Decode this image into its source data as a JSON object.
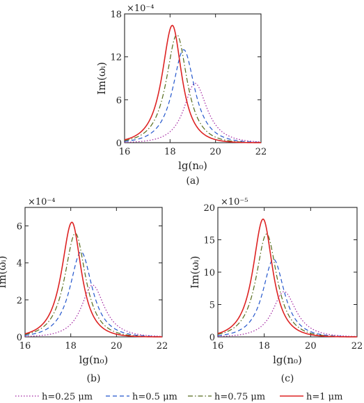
{
  "chart_data": [
    {
      "type": "line",
      "caption": "(a)",
      "xlabel": "lg(n₀)",
      "ylabel": "Im(ωᵢ)",
      "scale_label": "×10⁻⁴",
      "xlim": [
        16,
        22
      ],
      "ylim": [
        0,
        18
      ],
      "xticks": [
        16,
        18,
        20,
        22
      ],
      "yticks": [
        0,
        6,
        12,
        18
      ],
      "xtick_labels": [
        "16",
        "18",
        "20",
        "22"
      ],
      "ytick_labels": [
        "0",
        "6",
        "12",
        "18"
      ],
      "series": [
        {
          "name": "h=0.25 μm",
          "peak_x": 19.1,
          "peak_y": 8.3,
          "sigma_left": 0.65,
          "sigma_right": 0.7
        },
        {
          "name": "h=0.5 μm",
          "peak_x": 18.6,
          "peak_y": 13.0,
          "sigma_left": 0.65,
          "sigma_right": 0.65
        },
        {
          "name": "h=0.75 μm",
          "peak_x": 18.3,
          "peak_y": 15.1,
          "sigma_left": 0.62,
          "sigma_right": 0.6
        },
        {
          "name": "h=1 μm",
          "peak_x": 18.1,
          "peak_y": 16.4,
          "sigma_left": 0.6,
          "sigma_right": 0.55
        }
      ]
    },
    {
      "type": "line",
      "caption": "(b)",
      "xlabel": "lg(n₀)",
      "ylabel": "Im(ωᵢ)",
      "scale_label": "×10⁻⁴",
      "xlim": [
        16,
        22
      ],
      "ylim": [
        0,
        7
      ],
      "xticks": [
        16,
        18,
        20,
        22
      ],
      "yticks": [
        0,
        2,
        4,
        6
      ],
      "xtick_labels": [
        "16",
        "18",
        "20",
        "22"
      ],
      "ytick_labels": [
        "0",
        "2",
        "4",
        "6"
      ],
      "series": [
        {
          "name": "h=0.25 μm",
          "peak_x": 18.95,
          "peak_y": 2.8,
          "sigma_left": 0.65,
          "sigma_right": 0.7
        },
        {
          "name": "h=0.5 μm",
          "peak_x": 18.45,
          "peak_y": 4.6,
          "sigma_left": 0.65,
          "sigma_right": 0.65
        },
        {
          "name": "h=0.75 μm",
          "peak_x": 18.2,
          "peak_y": 5.6,
          "sigma_left": 0.62,
          "sigma_right": 0.6
        },
        {
          "name": "h=1 μm",
          "peak_x": 18.05,
          "peak_y": 6.2,
          "sigma_left": 0.6,
          "sigma_right": 0.55
        }
      ]
    },
    {
      "type": "line",
      "caption": "(c)",
      "xlabel": "lg(n₀)",
      "ylabel": "Im(ωᵢ)",
      "scale_label": "×10⁻⁵",
      "xlim": [
        16,
        22
      ],
      "ylim": [
        0,
        20
      ],
      "xticks": [
        16,
        18,
        20,
        22
      ],
      "yticks": [
        0,
        5,
        10,
        15,
        20
      ],
      "xtick_labels": [
        "16",
        "18",
        "20",
        "22"
      ],
      "ytick_labels": [
        "0",
        "5",
        "10",
        "15",
        "20"
      ],
      "series": [
        {
          "name": "h=0.25 μm",
          "peak_x": 18.85,
          "peak_y": 7.0,
          "sigma_left": 0.65,
          "sigma_right": 0.7
        },
        {
          "name": "h=0.5 μm",
          "peak_x": 18.4,
          "peak_y": 12.0,
          "sigma_left": 0.62,
          "sigma_right": 0.62
        },
        {
          "name": "h=0.75 μm",
          "peak_x": 18.1,
          "peak_y": 15.9,
          "sigma_left": 0.6,
          "sigma_right": 0.6
        },
        {
          "name": "h=1 μm",
          "peak_x": 17.95,
          "peak_y": 18.2,
          "sigma_left": 0.58,
          "sigma_right": 0.55
        }
      ]
    }
  ],
  "legend": {
    "placement": "bottom",
    "entries": [
      {
        "label": "h=0.25 μm",
        "color": "#a020a0",
        "dash": "dotted"
      },
      {
        "label": "h=0.5 μm",
        "color": "#2255cc",
        "dash": "dashed"
      },
      {
        "label": "h=0.75 μm",
        "color": "#556b1a",
        "dash": "dashdot"
      },
      {
        "label": "h=1 μm",
        "color": "#dd2222",
        "dash": "solid"
      }
    ]
  }
}
